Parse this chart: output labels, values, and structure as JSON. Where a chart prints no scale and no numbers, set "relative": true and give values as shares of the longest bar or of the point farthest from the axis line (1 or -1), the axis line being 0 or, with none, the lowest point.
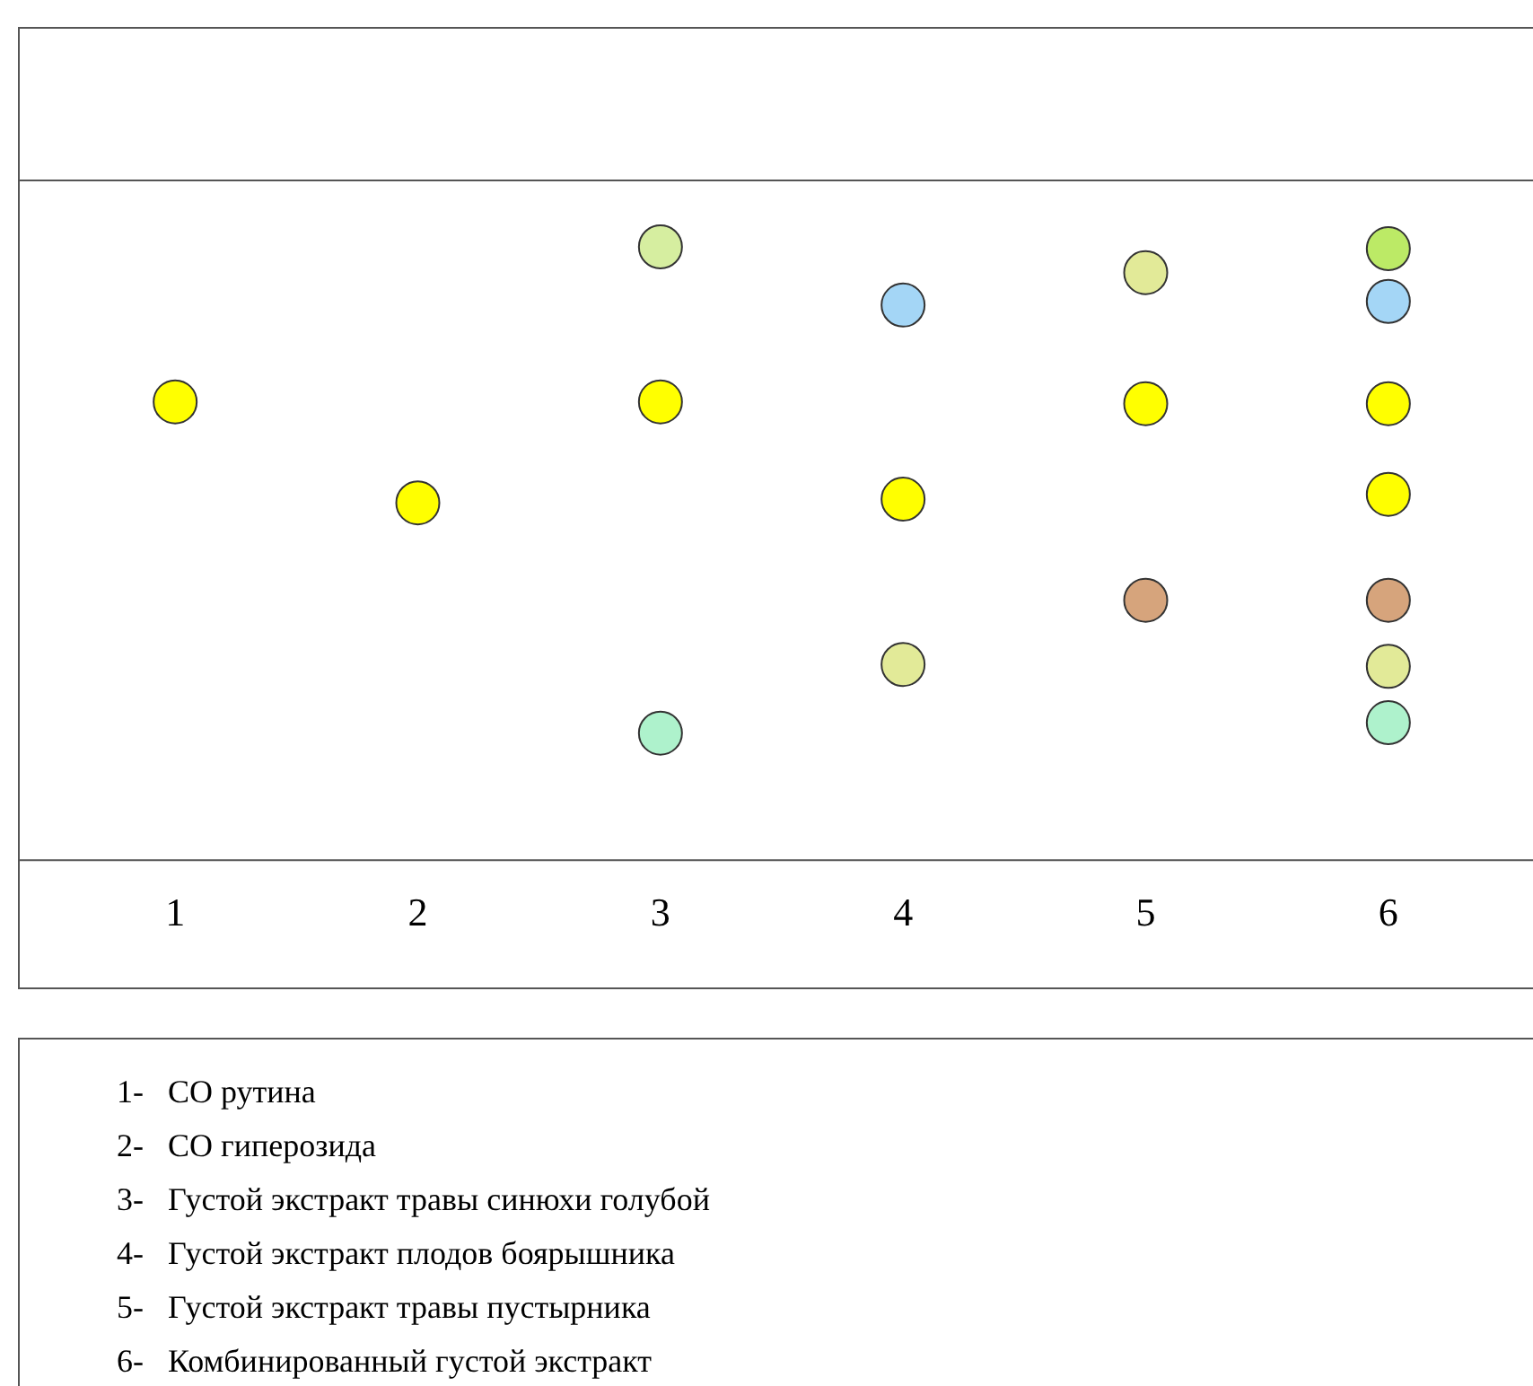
{
  "chart_data": {
    "type": "scatter",
    "relative": true,
    "marker": "circle",
    "categories": [
      "1",
      "2",
      "3",
      "4",
      "5",
      "6"
    ],
    "series": [
      {
        "color": "#ffff00",
        "x": [
          "1",
          "2",
          "3",
          "4",
          "5",
          "6",
          "6"
        ],
        "values": [
          0.747,
          0.582,
          0.747,
          0.588,
          0.744,
          0.744,
          0.596
        ]
      },
      {
        "color": "#d6eea0",
        "x": [
          "3"
        ],
        "values": [
          1
        ]
      },
      {
        "color": "#bcea66",
        "x": [
          "6"
        ],
        "values": [
          0.997
        ]
      },
      {
        "color": "#a4d6f6",
        "x": [
          "4",
          "6"
        ],
        "values": [
          0.905,
          0.911
        ]
      },
      {
        "color": "#e2ea98",
        "x": [
          "4",
          "5",
          "6"
        ],
        "values": [
          0.318,
          0.958,
          0.315
        ]
      },
      {
        "color": "#d6a47c",
        "x": [
          "5",
          "6"
        ],
        "values": [
          0.423,
          0.423
        ]
      },
      {
        "color": "#aef2cc",
        "x": [
          "3",
          "6"
        ],
        "values": [
          0.206,
          0.223
        ]
      }
    ],
    "annotations": [
      "1-   СО рутина",
      "2-   СО гиперозида",
      "3-   Густой экстракт травы синюхи голубой",
      "4-   Густой экстракт плодов боярышника",
      "5-   Густой экстракт травы пустырника",
      "6-   Комбинированный густой экстракт"
    ]
  }
}
